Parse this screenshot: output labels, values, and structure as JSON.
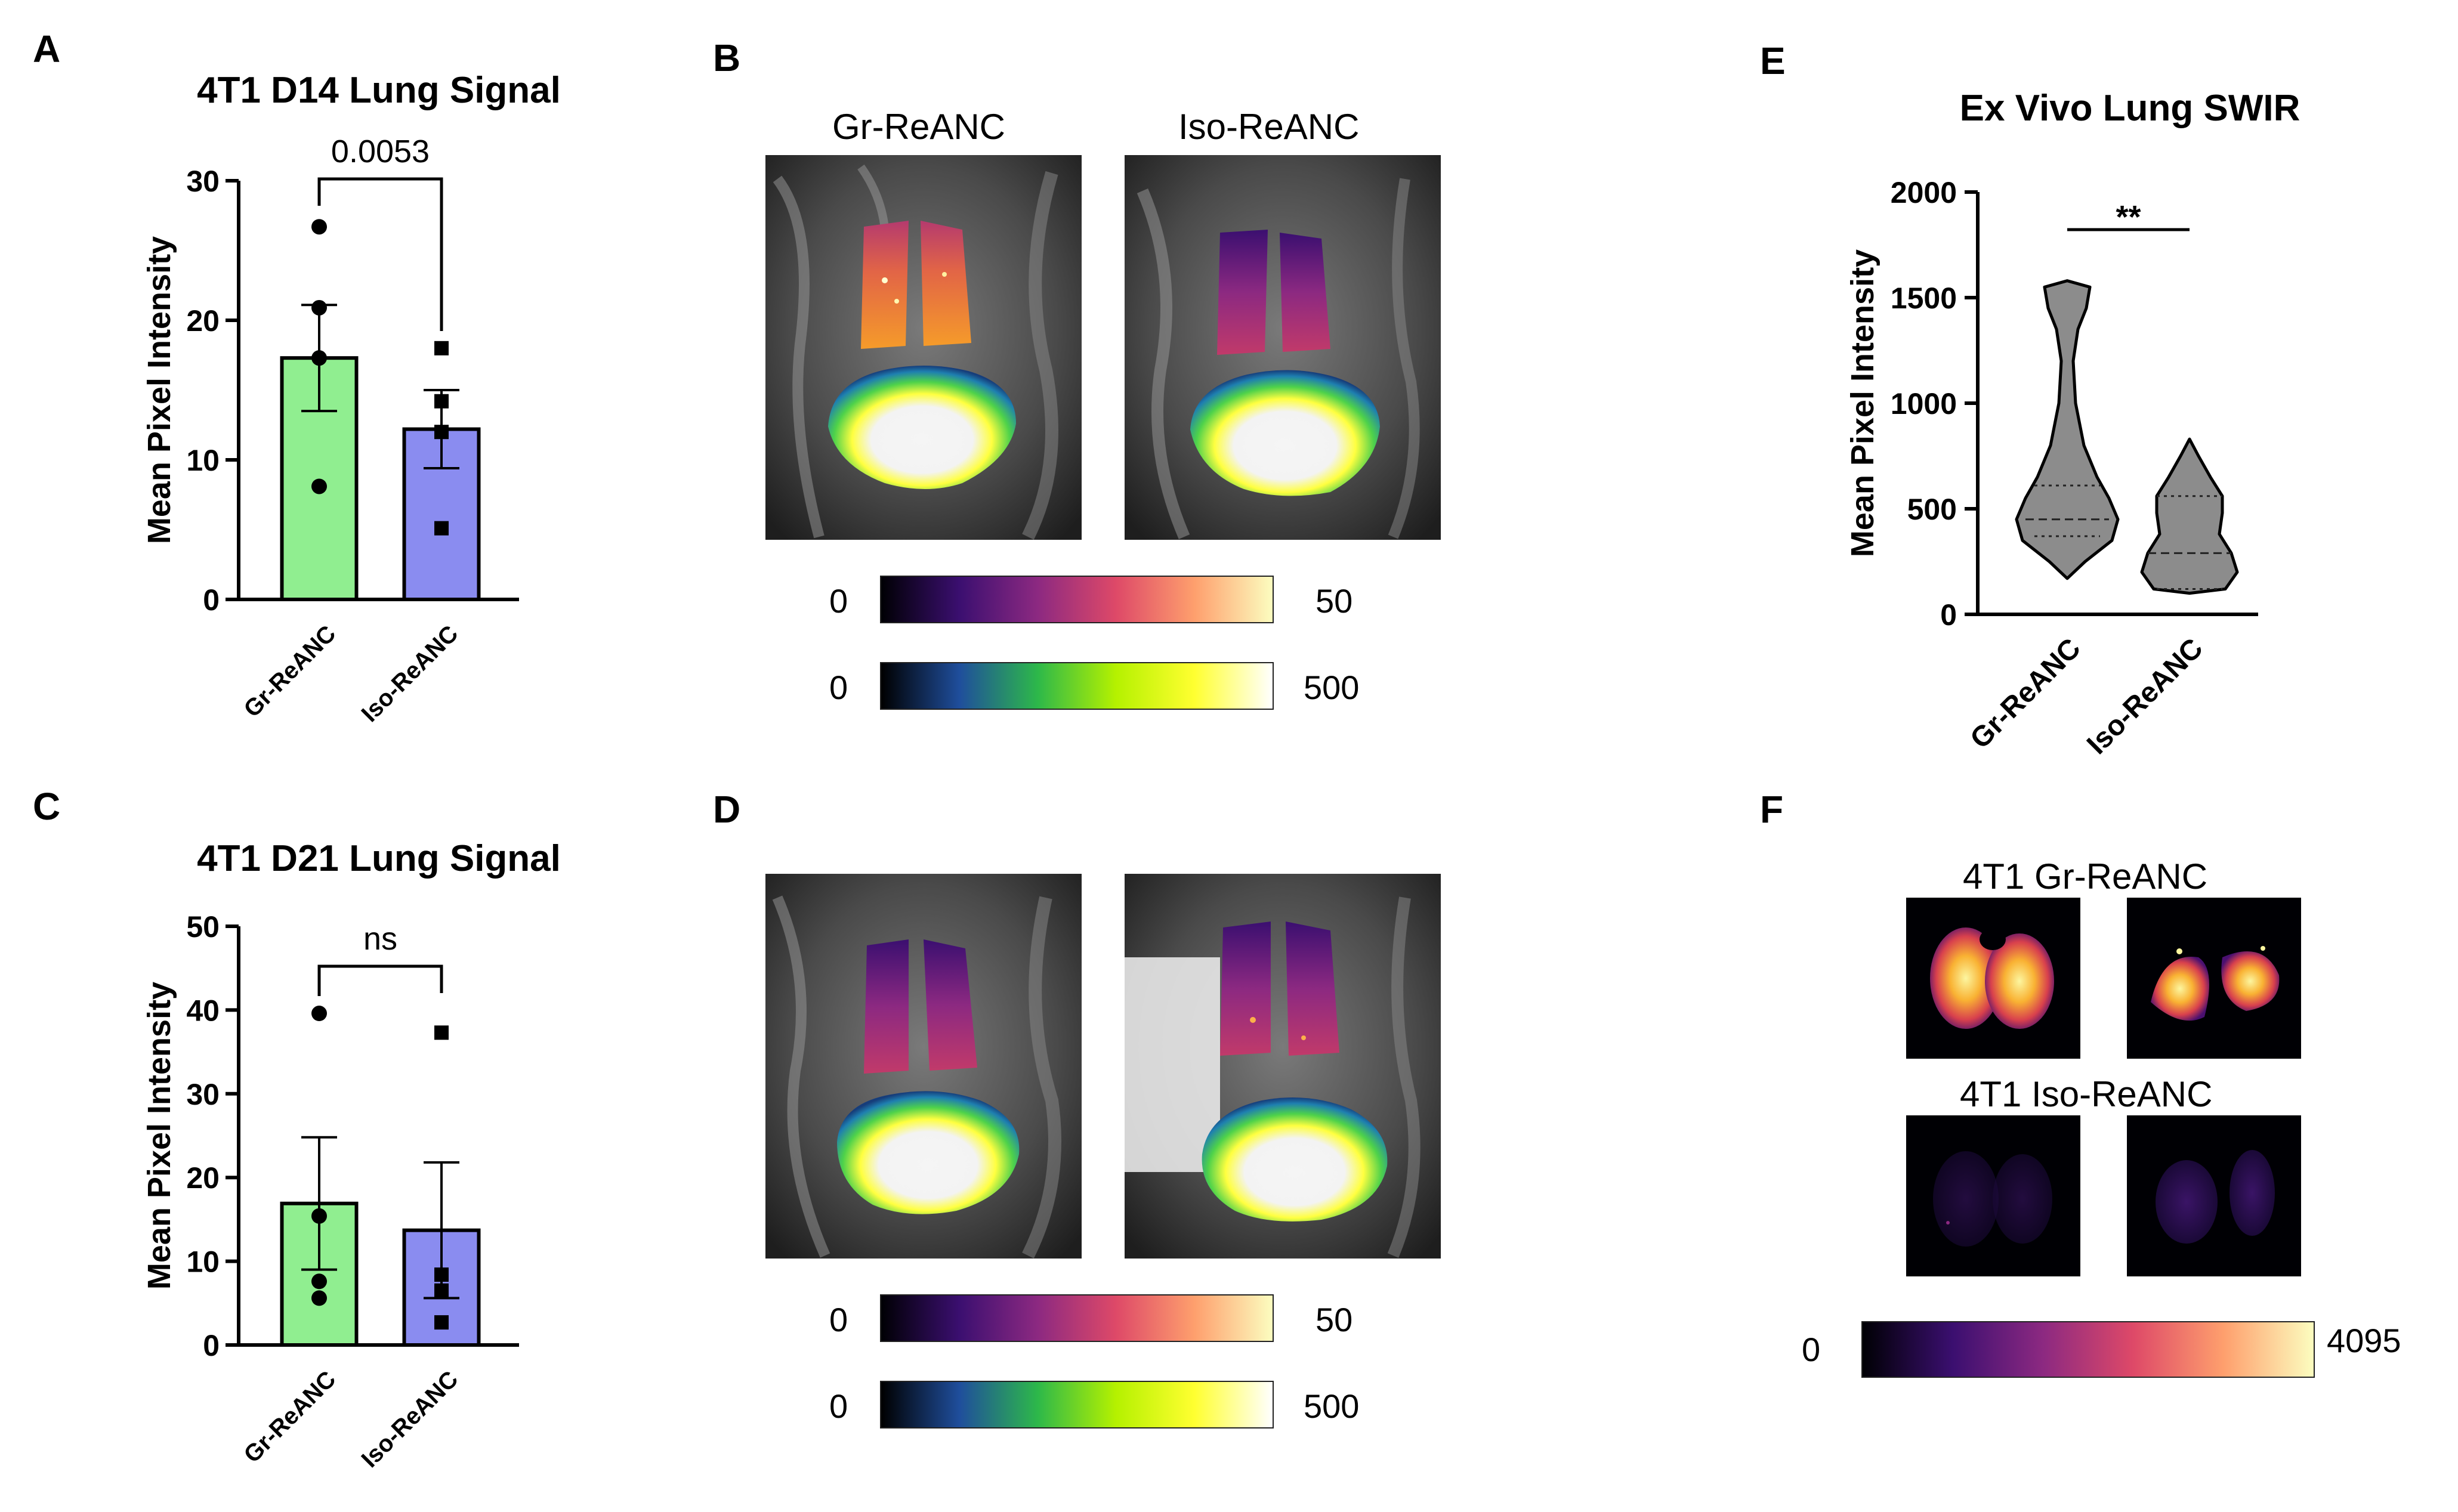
{
  "panels": {
    "A": "A",
    "B": "B",
    "C": "C",
    "D": "D",
    "E": "E",
    "F": "F"
  },
  "chart_data": [
    {
      "id": "A",
      "type": "bar",
      "title": "4T1 D14 Lung Signal",
      "ylabel": "Mean Pixel Intensity",
      "categories": [
        "Gr-ReANC",
        "Iso-ReANC"
      ],
      "values": [
        17.3,
        12.2
      ],
      "sem": [
        3.8,
        2.8
      ],
      "points": [
        [
          26.7,
          20.9,
          17.3,
          8.1
        ],
        [
          18.0,
          14.2,
          12.0,
          5.1
        ]
      ],
      "yticks": [
        "0",
        "10",
        "20",
        "30"
      ],
      "ylim": [
        0,
        30
      ],
      "significance": "0.0053",
      "colors": [
        "#90ee90",
        "#8a8cf0"
      ]
    },
    {
      "id": "C",
      "type": "bar",
      "title": "4T1 D21 Lung Signal",
      "ylabel": "Mean Pixel Intensity",
      "categories": [
        "Gr-ReANC",
        "Iso-ReANC"
      ],
      "values": [
        16.9,
        13.7
      ],
      "sem": [
        7.9,
        8.1
      ],
      "points": [
        [
          39.6,
          15.4,
          7.6,
          5.6
        ],
        [
          37.3,
          8.4,
          6.5,
          2.7
        ]
      ],
      "yticks": [
        "0",
        "10",
        "20",
        "30",
        "40",
        "50"
      ],
      "ylim": [
        0,
        50
      ],
      "significance": "ns",
      "colors": [
        "#90ee90",
        "#8a8cf0"
      ]
    },
    {
      "id": "E",
      "type": "violin",
      "title": "Ex Vivo Lung SWIR",
      "ylabel": "Mean Pixel Intensity",
      "categories": [
        "Gr-ReANC",
        "Iso-ReANC"
      ],
      "yticks": [
        "0",
        "500",
        "1000",
        "1500",
        "2000"
      ],
      "ylim": [
        0,
        2000
      ],
      "medians": [
        450,
        290
      ],
      "quartiles": [
        [
          370,
          610
        ],
        [
          120,
          560
        ]
      ],
      "ranges": [
        [
          170,
          1580
        ],
        [
          100,
          830
        ]
      ],
      "significance": "**",
      "color": "#8c8c8c"
    }
  ],
  "panelB": {
    "col_labels": [
      "Gr-ReANC",
      "Iso-ReANC"
    ],
    "colorbars": [
      {
        "min": "0",
        "max": "50",
        "map": "inferno"
      },
      {
        "min": "0",
        "max": "500",
        "map": "viridis-white"
      }
    ]
  },
  "panelD": {
    "colorbars": [
      {
        "min": "0",
        "max": "50",
        "map": "inferno"
      },
      {
        "min": "0",
        "max": "500",
        "map": "viridis-white"
      }
    ]
  },
  "panelF": {
    "row_labels": [
      "4T1 Gr-ReANC",
      "4T1 Iso-ReANC"
    ],
    "colorbar": {
      "min": "0",
      "max": "4095",
      "map": "inferno"
    }
  },
  "colors": {
    "inferno": [
      "#000004",
      "#3b0f70",
      "#8c2981",
      "#de4968",
      "#fe9f6d",
      "#fcfdbf"
    ],
    "viridis_white": [
      "#000000",
      "#1f4e9c",
      "#2db84a",
      "#b5f100",
      "#ffff30",
      "#ffffff"
    ]
  }
}
